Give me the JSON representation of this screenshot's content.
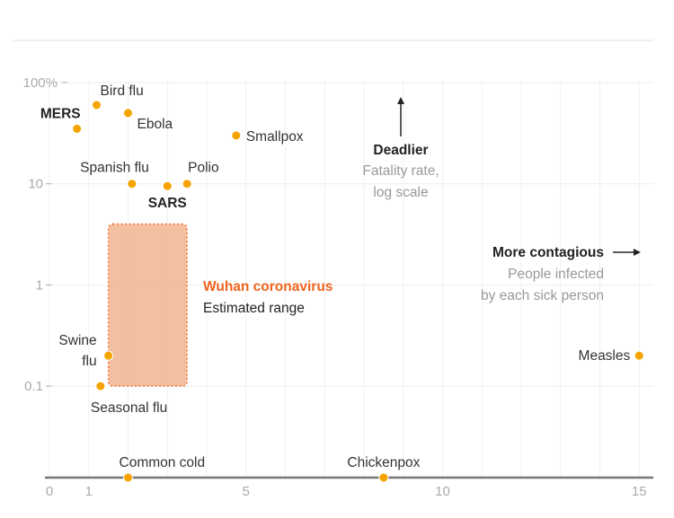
{
  "chart_data": {
    "type": "scatter",
    "title": "",
    "xlabel": "People infected by each sick person",
    "ylabel": "Fatality rate, log scale",
    "x_scale": "linear",
    "y_scale": "log",
    "xlim": [
      0,
      15.3
    ],
    "ylim": [
      0.01,
      100
    ],
    "x_ticks": [
      0,
      1,
      5,
      10,
      15
    ],
    "x_tick_labels": [
      "0",
      "1",
      "5",
      "10",
      "15"
    ],
    "y_ticks": [
      100,
      10,
      1,
      0.1
    ],
    "y_tick_labels": [
      "100%",
      "10",
      "1",
      "0.1"
    ],
    "grid": true,
    "point_color": "#f5a300",
    "highlight_color": "#f0641e",
    "points": [
      {
        "name": "Bird flu",
        "x": 1.2,
        "y": 60,
        "bold": false
      },
      {
        "name": "MERS",
        "x": 0.7,
        "y": 35,
        "bold": true
      },
      {
        "name": "Ebola",
        "x": 2.0,
        "y": 50,
        "bold": false
      },
      {
        "name": "Smallpox",
        "x": 4.75,
        "y": 30,
        "bold": false
      },
      {
        "name": "Spanish flu",
        "x": 2.1,
        "y": 10,
        "bold": false
      },
      {
        "name": "Polio",
        "x": 3.5,
        "y": 10,
        "bold": false
      },
      {
        "name": "SARS",
        "x": 3.0,
        "y": 9.5,
        "bold": true
      },
      {
        "name": "Swine flu",
        "x": 1.5,
        "y": 0.2,
        "bold": false
      },
      {
        "name": "Seasonal flu",
        "x": 1.3,
        "y": 0.1,
        "bold": false
      },
      {
        "name": "Measles",
        "x": 15,
        "y": 0.2,
        "bold": false
      },
      {
        "name": "Common cold",
        "x": 2.0,
        "y": 0,
        "bold": false
      },
      {
        "name": "Chickenpox",
        "x": 8.5,
        "y": 0,
        "bold": false
      }
    ],
    "range_box": {
      "name": "Wuhan coronavirus",
      "subtitle": "Estimated range",
      "x": [
        1.5,
        3.5
      ],
      "y": [
        0.1,
        4
      ]
    },
    "annotations": {
      "y_direction": {
        "title": "Deadlier",
        "line1": "Fatality rate,",
        "line2": "log scale"
      },
      "x_direction": {
        "title": "More contagious",
        "line1": "People infected",
        "line2": "by each sick person"
      }
    }
  }
}
